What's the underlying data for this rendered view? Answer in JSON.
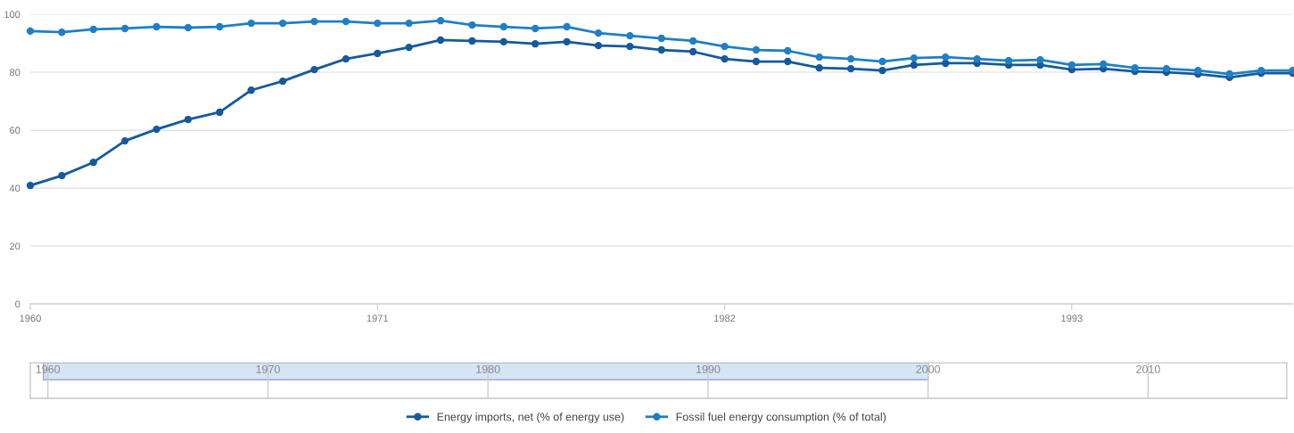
{
  "chart_data": [
    {
      "type": "line",
      "x": [
        1960,
        1961,
        1962,
        1963,
        1964,
        1965,
        1966,
        1967,
        1968,
        1969,
        1970,
        1971,
        1972,
        1973,
        1974,
        1975,
        1976,
        1977,
        1978,
        1979,
        1980,
        1981,
        1982,
        1983,
        1984,
        1985,
        1986,
        1987,
        1988,
        1989,
        1990,
        1991,
        1992,
        1993,
        1994,
        1995,
        1996,
        1997,
        1998,
        1999,
        2000
      ],
      "series": [
        {
          "name": "Energy imports, net (% of energy use)",
          "color": "#155a9c",
          "values": [
            40.9,
            44.3,
            48.9,
            56.3,
            60.3,
            63.7,
            66.2,
            73.8,
            76.9,
            80.9,
            84.6,
            86.5,
            88.6,
            91.1,
            90.8,
            90.5,
            89.8,
            90.5,
            89.2,
            88.9,
            87.7,
            87.1,
            84.6,
            83.7,
            83.7,
            81.5,
            81.2,
            80.6,
            82.5,
            83.1,
            83.1,
            82.5,
            82.5,
            80.9,
            81.2,
            80.3,
            80.0,
            79.4,
            78.2,
            79.7,
            79.7
          ]
        },
        {
          "name": "Fossil fuel energy consumption (% of total)",
          "color": "#1f7fc6",
          "values": [
            94.2,
            93.8,
            94.8,
            95.1,
            95.7,
            95.4,
            95.7,
            96.9,
            96.9,
            97.5,
            97.5,
            96.9,
            96.9,
            97.8,
            96.3,
            95.7,
            95.1,
            95.7,
            93.5,
            92.6,
            91.7,
            90.8,
            88.9,
            87.7,
            87.4,
            85.2,
            84.6,
            83.7,
            84.9,
            85.2,
            84.6,
            84.0,
            84.3,
            82.5,
            82.8,
            81.5,
            81.2,
            80.6,
            79.4,
            80.6,
            80.6
          ]
        }
      ],
      "xlim": [
        1960,
        2000
      ],
      "xticks": [
        1960,
        1971,
        1982,
        1993
      ],
      "ylim": [
        0,
        100
      ],
      "yticks": [
        0,
        20,
        40,
        60,
        80,
        100
      ],
      "grid": "y",
      "legend": "bottom",
      "marker": "circle",
      "line_style": "solid"
    },
    {
      "type": "bar",
      "orientation": "horizontal",
      "categories": [
        null
      ],
      "base": [
        1959.8
      ],
      "values": [
        40.2
      ],
      "colors": [
        "#d6e5f6"
      ],
      "xlim": [
        1959.2,
        2016.3
      ],
      "xticks": [
        1960,
        1970,
        1980,
        1990,
        2000,
        2010
      ],
      "grid": "x"
    }
  ]
}
